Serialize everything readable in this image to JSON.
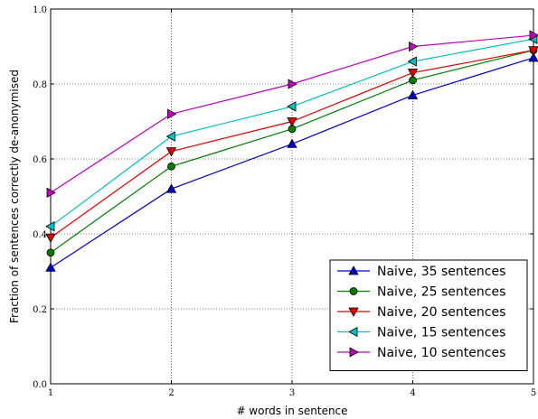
{
  "chart_data": {
    "type": "line",
    "xlabel": "# words in sentence",
    "ylabel": "Fraction of sentences correctly de-anonymised",
    "xlim": [
      1,
      5
    ],
    "ylim": [
      0.0,
      1.0
    ],
    "x": [
      1,
      2,
      3,
      4,
      5
    ],
    "x_ticks": [
      "1",
      "2",
      "3",
      "4",
      "5"
    ],
    "y_ticks": [
      "0.0",
      "0.2",
      "0.4",
      "0.6",
      "0.8",
      "1.0"
    ],
    "y_tick_values": [
      0.0,
      0.2,
      0.4,
      0.6,
      0.8,
      1.0
    ],
    "grid": true,
    "legend_position": "bottom-right",
    "series": [
      {
        "name": "Naive, 35 sentences",
        "values": [
          0.31,
          0.52,
          0.64,
          0.77,
          0.87
        ],
        "color": "#0000cc",
        "marker": "triangle-up"
      },
      {
        "name": "Naive, 25 sentences",
        "values": [
          0.35,
          0.58,
          0.68,
          0.81,
          0.89
        ],
        "color": "#007f00",
        "marker": "circle"
      },
      {
        "name": "Naive, 20 sentences",
        "values": [
          0.39,
          0.62,
          0.7,
          0.83,
          0.89
        ],
        "color": "#e00000",
        "marker": "triangle-down"
      },
      {
        "name": "Naive, 15 sentences",
        "values": [
          0.42,
          0.66,
          0.74,
          0.86,
          0.92
        ],
        "color": "#00bfbf",
        "marker": "triangle-left"
      },
      {
        "name": "Naive, 10 sentences",
        "values": [
          0.51,
          0.72,
          0.8,
          0.9,
          0.93
        ],
        "color": "#bf00bf",
        "marker": "triangle-right"
      }
    ]
  }
}
